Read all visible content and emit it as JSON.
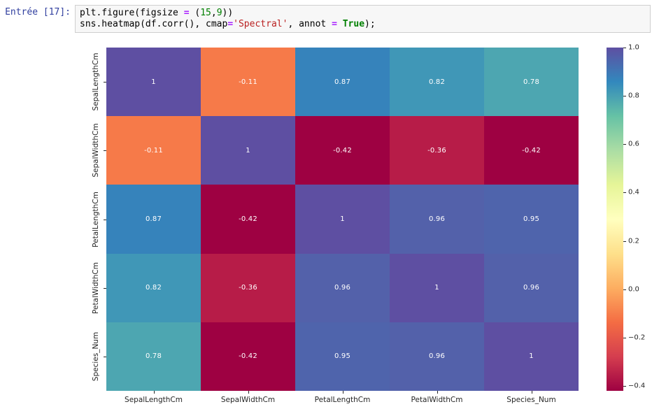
{
  "notebook": {
    "prompt": "Entrée [17]:",
    "code_lines": [
      [
        {
          "t": "plt.figure(figsize ",
          "c": "p"
        },
        {
          "t": "=",
          "c": "o"
        },
        {
          "t": " (",
          "c": "p"
        },
        {
          "t": "15",
          "c": "n"
        },
        {
          "t": ",",
          "c": "p"
        },
        {
          "t": "9",
          "c": "n"
        },
        {
          "t": "))",
          "c": "p"
        }
      ],
      [
        {
          "t": "sns.heatmap(df.corr(), cmap",
          "c": "p"
        },
        {
          "t": "=",
          "c": "o"
        },
        {
          "t": "'Spectral'",
          "c": "s"
        },
        {
          "t": ", annot ",
          "c": "p"
        },
        {
          "t": "=",
          "c": "o"
        },
        {
          "t": " ",
          "c": "p"
        },
        {
          "t": "True",
          "c": "k"
        },
        {
          "t": ");",
          "c": "p"
        }
      ]
    ]
  },
  "chart_data": {
    "type": "heatmap",
    "title": "",
    "cmap": "Spectral",
    "vmin": -0.42,
    "vmax": 1.0,
    "categories": [
      "SepalLengthCm",
      "SepalWidthCm",
      "PetalLengthCm",
      "PetalWidthCm",
      "Species_Num"
    ],
    "matrix": [
      [
        1,
        -0.11,
        0.87,
        0.82,
        0.78
      ],
      [
        -0.11,
        1,
        -0.42,
        -0.36,
        -0.42
      ],
      [
        0.87,
        -0.42,
        1,
        0.96,
        0.95
      ],
      [
        0.82,
        -0.36,
        0.96,
        1,
        0.96
      ],
      [
        0.78,
        -0.42,
        0.95,
        0.96,
        1
      ]
    ],
    "annot": [
      [
        "1",
        "-0.11",
        "0.87",
        "0.82",
        "0.78"
      ],
      [
        "-0.11",
        "1",
        "-0.42",
        "-0.36",
        "-0.42"
      ],
      [
        "0.87",
        "-0.42",
        "1",
        "0.96",
        "0.95"
      ],
      [
        "0.82",
        "-0.36",
        "0.96",
        "1",
        "0.96"
      ],
      [
        "0.78",
        "-0.42",
        "0.95",
        "0.96",
        "1"
      ]
    ],
    "annot_color": "#ffffff",
    "value_colors": {
      "1": "#5e4fa2",
      "0.96": "#5361aa",
      "0.95": "#4f64ac",
      "0.87": "#3683bb",
      "0.82": "#4097b7",
      "0.78": "#4da6b1",
      "-0.11": "#f67a49",
      "-0.36": "#b71c48",
      "-0.42": "#9e0142"
    },
    "colorbar": {
      "gradient": [
        "#5e4fa2",
        "#3288bd",
        "#66c2a5",
        "#abdda4",
        "#e6f598",
        "#ffffbf",
        "#fee08b",
        "#fdae61",
        "#f46d43",
        "#d53e4f",
        "#9e0142"
      ],
      "ticks": [
        {
          "v": 1.0,
          "label": "1.0"
        },
        {
          "v": 0.8,
          "label": "0.8"
        },
        {
          "v": 0.6,
          "label": "0.6"
        },
        {
          "v": 0.4,
          "label": "0.4"
        },
        {
          "v": 0.2,
          "label": "0.2"
        },
        {
          "v": 0.0,
          "label": "0.0"
        },
        {
          "v": -0.2,
          "label": "−0.2"
        },
        {
          "v": -0.4,
          "label": "−0.4"
        }
      ]
    },
    "legend_position": "right",
    "grid": false
  }
}
